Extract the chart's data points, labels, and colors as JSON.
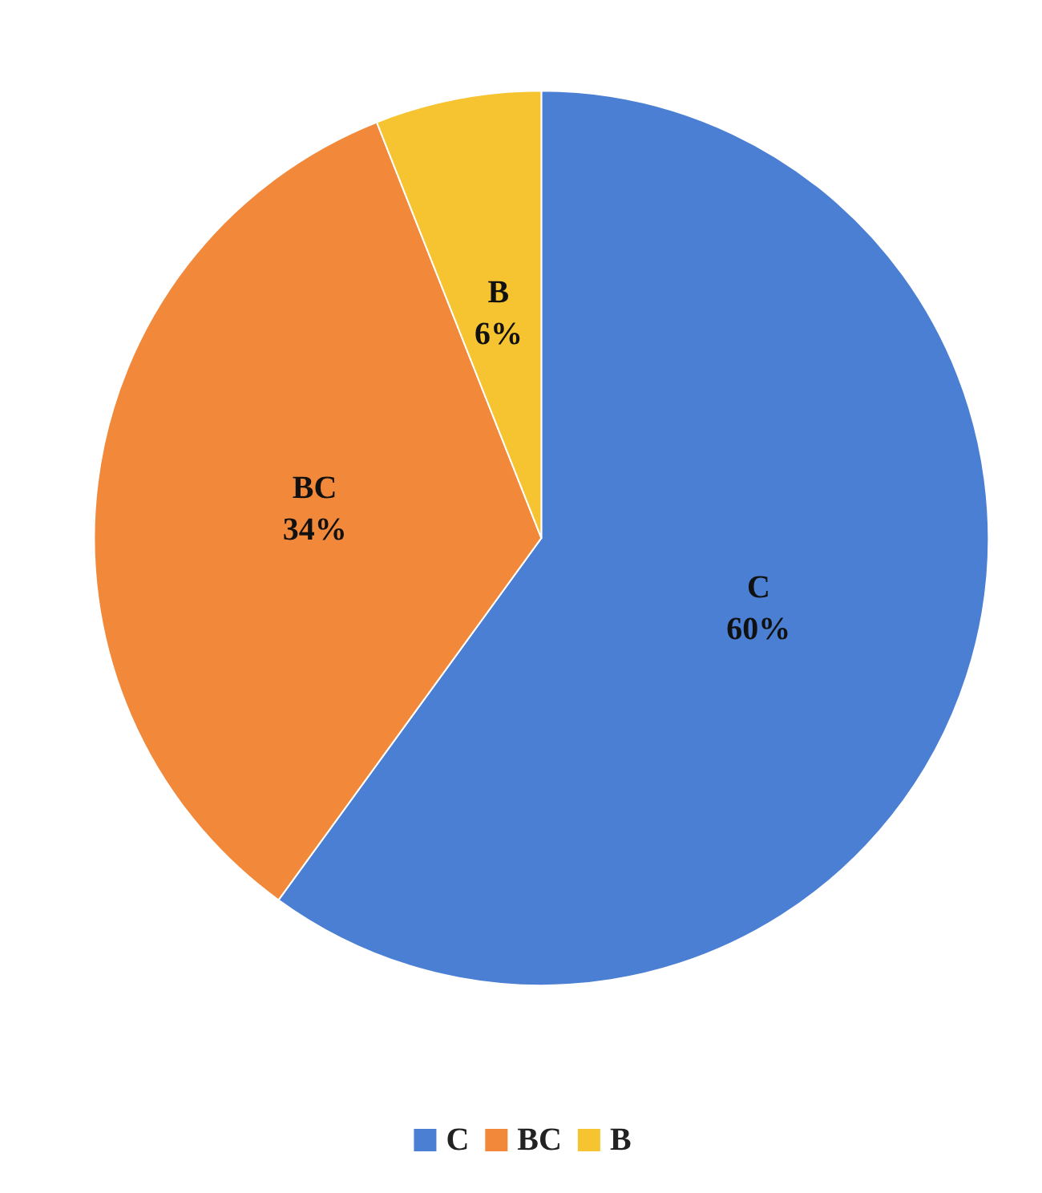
{
  "chart_data": {
    "type": "pie",
    "categories": [
      "C",
      "BC",
      "B"
    ],
    "values": [
      60,
      34,
      6
    ],
    "colors": [
      "#4a7fd4",
      "#f2883a",
      "#f6c431"
    ],
    "value_labels": [
      "60%",
      "34%",
      "6%"
    ],
    "legend": "bottom"
  }
}
